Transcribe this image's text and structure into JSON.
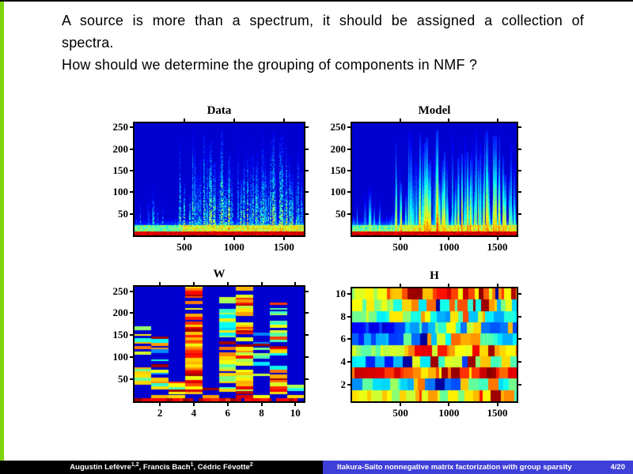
{
  "slide": {
    "title_lines": [
      "A source is more than a spectrum, it should be assigned a collection of",
      "spectra.",
      "How should we determine the grouping of components in NMF ?"
    ]
  },
  "theme": {
    "accent_green": "#7ED40C",
    "footer_black": "#000000",
    "footer_blue": "#3E3ED9",
    "plot_background_blue": "#0000d1",
    "colormap": "jet"
  },
  "footer": {
    "authors": [
      {
        "text": "Augustin Lefèvre",
        "sup": "1,2"
      },
      {
        "text": ", Francis Bach",
        "sup": "1"
      },
      {
        "text": ", Cédric Févotte",
        "sup": "2"
      }
    ],
    "talk_title": "Itakura-Saito nonnegative matrix factorization with group sparsity",
    "page": "4/20"
  },
  "chart_data": [
    {
      "type": "heatmap",
      "title": "Data",
      "colormap": "jet",
      "grid": false,
      "xlim": [
        0,
        1700
      ],
      "ylim": [
        0,
        260
      ],
      "xticks": [
        500,
        1000,
        1500
      ],
      "yticks": [
        50,
        100,
        150,
        200,
        250
      ],
      "content": "Audio power spectrogram (time frames vs frequency bins, jet colormap). First ~480 frames quiet with sparse low streaks, then dense tall harmonic onset streaks; hot red energy band along the lowest frequencies.",
      "gen": {
        "kind": "spectrogram",
        "seed": 13,
        "quiet_frac": 0.28,
        "noise": 0.55,
        "streaks": 170,
        "smooth": false
      }
    },
    {
      "type": "heatmap",
      "title": "Model",
      "colormap": "jet",
      "grid": false,
      "xlim": [
        0,
        1700
      ],
      "ylim": [
        0,
        260
      ],
      "xticks": [
        500,
        1000,
        1500
      ],
      "yticks": [
        50,
        100,
        150,
        200,
        250
      ],
      "content": "NMF model reconstruction of the same spectrogram: identical streak layout but smoother vertical comb-like streaks; hot red band at lowest frequencies.",
      "gen": {
        "kind": "spectrogram",
        "seed": 13,
        "quiet_frac": 0.28,
        "noise": 0.18,
        "streaks": 170,
        "smooth": true
      }
    },
    {
      "type": "heatmap",
      "title": "W",
      "colormap": "jet",
      "grid": false,
      "xlim": [
        0.5,
        10.5
      ],
      "ylim": [
        0,
        260
      ],
      "xticks": [
        2,
        4,
        6,
        8,
        10
      ],
      "yticks": [
        50,
        100,
        150,
        200,
        250
      ],
      "content": "Dictionary matrix: 10 basis spectra as vertical columns of horizontal stripes. Columns 4 and 7 are tall and hot (orange/red), 6 and 9 tall mixed green/orange, 1-2 and 8 partial sparse stripes, 3, 5 and 10 short low-frequency bases; hot red band at the very bottom.",
      "gen": {
        "kind": "columns",
        "seed": 5,
        "columns": [
          {
            "top": 0.72,
            "mean": 0.5,
            "var": 0.3,
            "fill": 0.38
          },
          {
            "top": 0.55,
            "mean": 0.5,
            "var": 0.28,
            "fill": 0.6
          },
          {
            "top": 0.16,
            "mean": 0.62,
            "var": 0.22,
            "fill": 0.85
          },
          {
            "top": 1.0,
            "mean": 0.76,
            "var": 0.16,
            "fill": 0.93
          },
          {
            "top": 0.1,
            "mean": 0.55,
            "var": 0.3,
            "fill": 0.35
          },
          {
            "top": 0.9,
            "mean": 0.55,
            "var": 0.22,
            "fill": 0.72
          },
          {
            "top": 0.97,
            "mean": 0.74,
            "var": 0.2,
            "fill": 0.9
          },
          {
            "top": 0.6,
            "mean": 0.45,
            "var": 0.3,
            "fill": 0.38
          },
          {
            "top": 0.85,
            "mean": 0.64,
            "var": 0.26,
            "fill": 0.68
          },
          {
            "top": 0.14,
            "mean": 0.55,
            "var": 0.22,
            "fill": 0.82
          }
        ]
      }
    },
    {
      "type": "heatmap",
      "title": "H",
      "colormap": "jet",
      "grid": false,
      "xlim": [
        0,
        1700
      ],
      "ylim": [
        0.5,
        10.5
      ],
      "xticks": [
        500,
        1000,
        1500
      ],
      "yticks": [
        2,
        4,
        6,
        8,
        10
      ],
      "content": "Activation matrix: 10 component activations over time as horizontal rows of random colored segments. Row 3 mostly red/orange, row 10 hot yellow/orange, rows 6-7 mostly dark blue on the left third, remaining rows mixed cyan/green/yellow; right two thirds are more active and mixed.",
      "gen": {
        "kind": "rows",
        "seed": 9,
        "quiet_frac": 0.3,
        "rows": [
          {
            "lm": 0.55,
            "lv": 0.15,
            "rm": 0.6,
            "rv": 0.3
          },
          {
            "lm": 0.4,
            "lv": 0.18,
            "rm": 0.45,
            "rv": 0.35
          },
          {
            "lm": 0.85,
            "lv": 0.1,
            "rm": 0.78,
            "rv": 0.22
          },
          {
            "lm": 0.25,
            "lv": 0.12,
            "rm": 0.45,
            "rv": 0.28
          },
          {
            "lm": 0.55,
            "lv": 0.12,
            "rm": 0.72,
            "rv": 0.25
          },
          {
            "lm": 0.22,
            "lv": 0.1,
            "rm": 0.5,
            "rv": 0.3
          },
          {
            "lm": 0.14,
            "lv": 0.08,
            "rm": 0.42,
            "rv": 0.3
          },
          {
            "lm": 0.5,
            "lv": 0.15,
            "rm": 0.55,
            "rv": 0.35
          },
          {
            "lm": 0.55,
            "lv": 0.15,
            "rm": 0.5,
            "rv": 0.3
          },
          {
            "lm": 0.7,
            "lv": 0.2,
            "rm": 0.78,
            "rv": 0.22
          }
        ]
      }
    }
  ]
}
